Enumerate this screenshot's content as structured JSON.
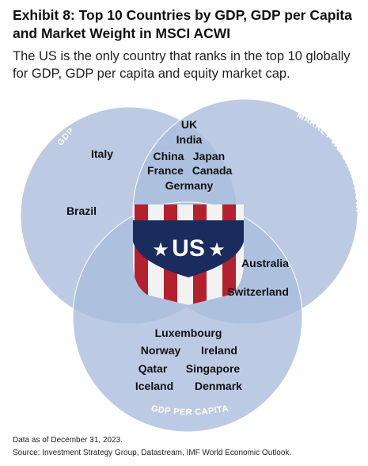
{
  "header": {
    "title": "Exhibit 8: Top 10 Countries by GDP, GDP per Capita and Market Weight in MSCI ACWI",
    "subtitle": "The US is the only country that ranks in the top 10 globally for GDP, GDP per capita and equity market cap."
  },
  "venn": {
    "sets": {
      "gdp": "GDP",
      "market_weight": "MARKET WEIGHT IN ACWI",
      "gdp_per_capita": "GDP PER CAPITA"
    },
    "gdp_only": [
      "Italy",
      "Brazil"
    ],
    "gdp_and_market_weight": [
      "UK",
      "India",
      "China",
      "Japan",
      "France",
      "Canada",
      "Germany"
    ],
    "market_weight_and_gdp_per_capita": [
      "Australia",
      "Switzerland"
    ],
    "gdp_per_capita_only": [
      "Luxembourg",
      "Norway",
      "Ireland",
      "Qatar",
      "Singapore",
      "Iceland",
      "Denmark"
    ],
    "all_three": "US",
    "colors": {
      "circle_fill": "#a9bcdb",
      "shield_navy": "#1a2c5e",
      "stripe_red": "#b5202e",
      "stripe_white": "#f2f2f2"
    }
  },
  "footnotes": {
    "date": "Data as of December 31, 2023.",
    "source": "Source: Investment Strategy Group, Datastream, IMF World Economic Outlook."
  }
}
